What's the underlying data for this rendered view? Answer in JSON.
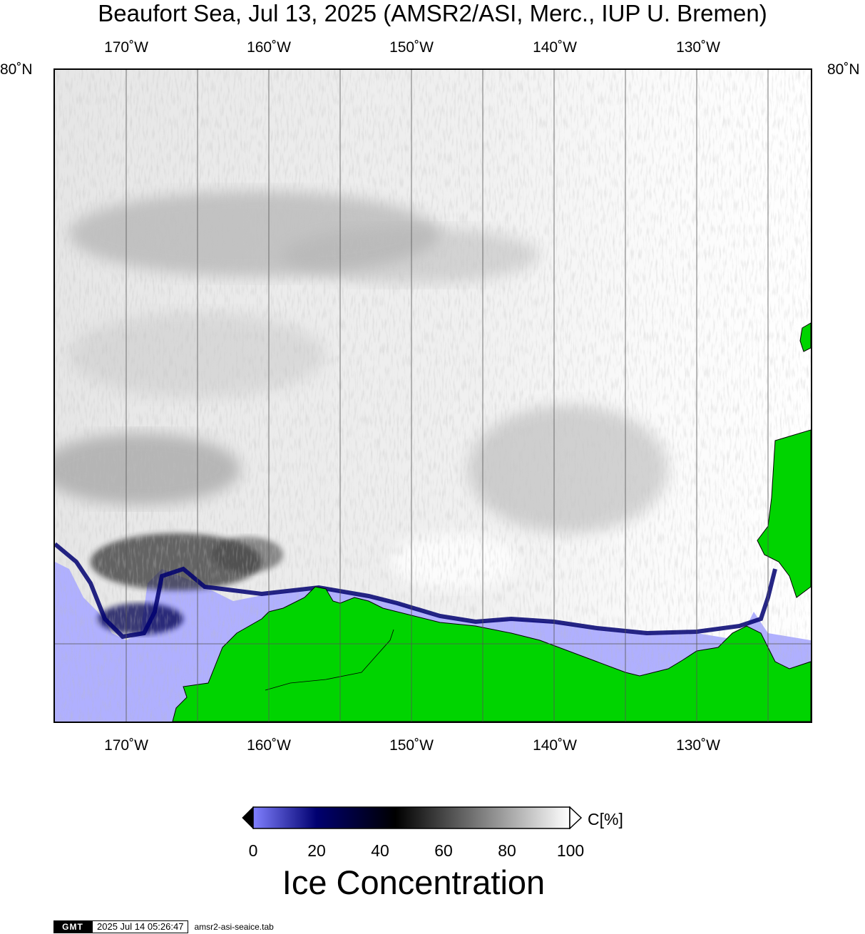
{
  "title": "Beaufort Sea, Jul 13, 2025 (AMSR2/ASI, Merc., IUP U. Bremen)",
  "axes": {
    "longitude_labels": [
      "170˚W",
      "160˚W",
      "150˚W",
      "140˚W",
      "130˚W"
    ],
    "latitude_label": "80˚N"
  },
  "colorbar": {
    "tick_labels": [
      "0",
      "20",
      "40",
      "60",
      "80",
      "100"
    ],
    "unit": "C[%]",
    "title": "Ice Concentration",
    "colors": {
      "low": "#8080ff",
      "mid_low": "#000070",
      "mid": "#000000",
      "high": "#ffffff"
    }
  },
  "map_colors": {
    "open_water": "#b0b0ff",
    "land": "#00d400",
    "grid": "#555555"
  },
  "footer": {
    "logo": "GMT",
    "timestamp": "2025 Jul 14 05:26:47",
    "source_file": "amsr2-asi-seaice.tab"
  }
}
